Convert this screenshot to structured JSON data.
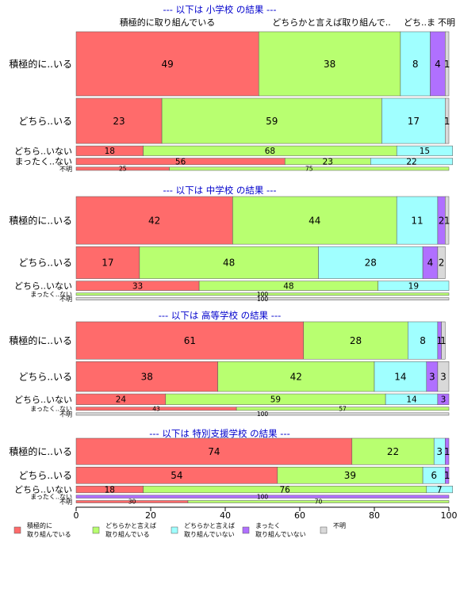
{
  "chart_data": {
    "type": "bar",
    "orientation": "horizontal",
    "stacked": true,
    "xlim": [
      0,
      100
    ],
    "x_ticks": [
      "0",
      "20",
      "40",
      "60",
      "80",
      "100"
    ],
    "top_header_labels": [
      "積極的に取り組んでいる",
      "どちらかと言えば取り組んで..",
      "どち..ま",
      "不明"
    ],
    "series_names": [
      "積極的に取り組んでいる",
      "どちらかと言えば取り組んでいる",
      "どちらかと言えば取り組んでいない",
      "まったく取り組んでいない",
      "不明"
    ],
    "colors": [
      "#FF6B6B",
      "#B8FF70",
      "#A0FFFF",
      "#B070FF",
      "#D9D9D9"
    ],
    "legend": [
      {
        "line1": "積極的に",
        "line2": "取り組んでいる",
        "color": "#FF6B6B"
      },
      {
        "line1": "どちらかと言えば",
        "line2": "取り組んでいる",
        "color": "#B8FF70"
      },
      {
        "line1": "どちらかと言えば",
        "line2": "取り組んでいない",
        "color": "#A0FFFF"
      },
      {
        "line1": "まったく",
        "line2": "取り組んでいない",
        "color": "#B070FF"
      },
      {
        "line1": "不明",
        "line2": "",
        "color": "#D9D9D9"
      }
    ],
    "panels": [
      {
        "title": "--- 以下は 小学校 の結果 ---",
        "rows": [
          {
            "label": "積極的に..いる",
            "values": [
              49,
              38,
              8,
              4,
              1
            ],
            "weight": 78,
            "labels": [
              "49",
              "38",
              "8",
              "4",
              "1"
            ]
          },
          {
            "label": "どちら..いる",
            "values": [
              23,
              59,
              17,
              0,
              1
            ],
            "weight": 55,
            "labels": [
              "23",
              "59",
              "17",
              "",
              "1"
            ]
          },
          {
            "label": "どちら..いない",
            "values": [
              18,
              68,
              15,
              0,
              0
            ],
            "weight": 12,
            "labels": [
              "18",
              "68",
              "15",
              "",
              ""
            ]
          },
          {
            "label": "まったく..ない",
            "values": [
              56,
              23,
              22,
              0,
              0
            ],
            "weight": 8,
            "labels": [
              "56",
              "23",
              "22",
              "",
              ""
            ]
          },
          {
            "label": "不明",
            "values": [
              25,
              75,
              0,
              0,
              0
            ],
            "weight": 4,
            "labels": [
              "25",
              "75",
              "",
              "",
              ""
            ]
          }
        ]
      },
      {
        "title": "--- 以下は 中学校 の結果 ---",
        "rows": [
          {
            "label": "積極的に..いる",
            "values": [
              42,
              44,
              11,
              2,
              1
            ],
            "weight": 55,
            "labels": [
              "42",
              "44",
              "11",
              "2",
              "1"
            ]
          },
          {
            "label": "どちら..いる",
            "values": [
              17,
              48,
              28,
              4,
              2
            ],
            "weight": 37,
            "labels": [
              "17",
              "48",
              "28",
              "4",
              "2"
            ]
          },
          {
            "label": "どちら..いない",
            "values": [
              33,
              48,
              19,
              0,
              0
            ],
            "weight": 11,
            "labels": [
              "33",
              "48",
              "19",
              "",
              ""
            ]
          },
          {
            "label": "まったく..ない",
            "values": [
              0,
              100,
              0,
              0,
              0
            ],
            "weight": 2,
            "labels": [
              "",
              "100",
              "",
              "",
              ""
            ]
          },
          {
            "label": "不明",
            "values": [
              0,
              0,
              0,
              0,
              100
            ],
            "weight": 2,
            "labels": [
              "",
              "",
              "",
              "",
              "100"
            ]
          }
        ]
      },
      {
        "title": "--- 以下は 高等学校 の結果 ---",
        "rows": [
          {
            "label": "積極的に..いる",
            "values": [
              61,
              28,
              8,
              1,
              1
            ],
            "weight": 45,
            "labels": [
              "61",
              "28",
              "8",
              "1",
              "1"
            ]
          },
          {
            "label": "どちら..いる",
            "values": [
              38,
              42,
              14,
              3,
              3
            ],
            "weight": 36,
            "labels": [
              "38",
              "42",
              "14",
              "3",
              "3"
            ]
          },
          {
            "label": "どちら..いない",
            "values": [
              24,
              59,
              14,
              3,
              0
            ],
            "weight": 13,
            "labels": [
              "24",
              "59",
              "14",
              "3",
              ""
            ]
          },
          {
            "label": "まったく..ない",
            "values": [
              43,
              57,
              0,
              0,
              0
            ],
            "weight": 4,
            "labels": [
              "43",
              "57",
              "",
              "",
              ""
            ]
          },
          {
            "label": "不明",
            "values": [
              0,
              0,
              0,
              0,
              100
            ],
            "weight": 3,
            "labels": [
              "",
              "",
              "",
              "",
              "100"
            ]
          }
        ]
      },
      {
        "title": "--- 以下は 特別支援学校 の結果 ---",
        "rows": [
          {
            "label": "積極的に..いる",
            "values": [
              74,
              22,
              3,
              1,
              0
            ],
            "weight": 27,
            "labels": [
              "74",
              "22",
              "3",
              "1",
              ""
            ]
          },
          {
            "label": "どちら..いる",
            "values": [
              54,
              39,
              6,
              1,
              0
            ],
            "weight": 17,
            "labels": [
              "54",
              "39",
              "6",
              "1",
              ""
            ]
          },
          {
            "label": "どちら..いない",
            "values": [
              18,
              76,
              7,
              0,
              0
            ],
            "weight": 7,
            "labels": [
              "18",
              "76",
              "7",
              "",
              ""
            ]
          },
          {
            "label": "まったく..ない",
            "values": [
              0,
              0,
              0,
              100,
              0
            ],
            "weight": 3,
            "labels": [
              "",
              "",
              "",
              "100",
              ""
            ]
          },
          {
            "label": "不明",
            "values": [
              30,
              70,
              0,
              0,
              0
            ],
            "weight": 2,
            "labels": [
              "30",
              "70",
              "",
              "",
              ""
            ]
          }
        ]
      }
    ]
  }
}
